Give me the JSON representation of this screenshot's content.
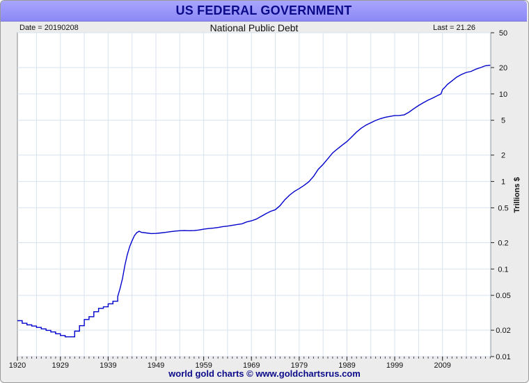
{
  "header": {
    "title": "US FEDERAL GOVERNMENT"
  },
  "footer": {
    "credit": "world gold charts © www.goldchartsrus.com"
  },
  "colors": {
    "line": "#0000cc",
    "title_bar": "#9a97fb",
    "title_text": "#0b0b8a",
    "grid": "#d8e2ef"
  },
  "chart_data": {
    "type": "line",
    "title": "National Public Debt",
    "date_label": "Date = 20190208",
    "last_label": "Last = 21.26",
    "xlabel": "",
    "ylabel": "Trillions $",
    "y_scale": "log",
    "xlim": [
      1920,
      2019.1
    ],
    "ylim": [
      0.01,
      50
    ],
    "x_ticks": [
      1920,
      1929,
      1939,
      1949,
      1959,
      1969,
      1979,
      1989,
      1999,
      2009
    ],
    "x_tick_labels": [
      "1920",
      "1929",
      "1939",
      "1949",
      "1959",
      "1969",
      "1979",
      "1989",
      "1999",
      "2009"
    ],
    "y_ticks": [
      0.01,
      0.02,
      0.05,
      0.1,
      0.2,
      0.5,
      1,
      2,
      5,
      10,
      20,
      50
    ],
    "y_tick_labels": [
      "0.01",
      "0.02",
      "0.05",
      "0.1",
      "0.2",
      "0.5",
      "1",
      "2",
      "5",
      "10",
      "20",
      "50"
    ],
    "grid": true,
    "series": [
      {
        "x": [
          1920,
          1921,
          1922,
          1923,
          1924,
          1925,
          1926,
          1927,
          1928,
          1929,
          1930,
          1931,
          1932,
          1933,
          1934,
          1935,
          1936,
          1937,
          1938,
          1939,
          1940,
          1941,
          1941.5,
          1942,
          1942.5,
          1943,
          1943.5,
          1944,
          1944.5,
          1945,
          1945.5,
          1946,
          1947,
          1948,
          1949,
          1950,
          1951,
          1952,
          1953,
          1954,
          1955,
          1956,
          1957,
          1958,
          1959,
          1960,
          1961,
          1962,
          1963,
          1964,
          1965,
          1966,
          1967,
          1968,
          1969,
          1970,
          1971,
          1972,
          1973,
          1974,
          1975,
          1976,
          1977,
          1978,
          1979,
          1980,
          1981,
          1982,
          1983,
          1984,
          1985,
          1986,
          1987,
          1988,
          1989,
          1990,
          1991,
          1992,
          1993,
          1994,
          1995,
          1996,
          1997,
          1998,
          1999,
          2000,
          2001,
          2002,
          2003,
          2004,
          2005,
          2006,
          2007,
          2008,
          2008.7,
          2009,
          2009.5,
          2010,
          2011,
          2012,
          2013,
          2014,
          2015,
          2016,
          2017,
          2018,
          2019
        ],
        "values": [
          0.0257,
          0.024,
          0.023,
          0.0223,
          0.0215,
          0.0207,
          0.0199,
          0.0191,
          0.0182,
          0.0174,
          0.0168,
          0.0168,
          0.0195,
          0.0225,
          0.0265,
          0.0285,
          0.0325,
          0.0355,
          0.037,
          0.04,
          0.0428,
          0.0485,
          0.06,
          0.078,
          0.11,
          0.145,
          0.18,
          0.21,
          0.24,
          0.26,
          0.27,
          0.262,
          0.258,
          0.254,
          0.255,
          0.258,
          0.262,
          0.267,
          0.271,
          0.274,
          0.275,
          0.274,
          0.275,
          0.279,
          0.285,
          0.29,
          0.293,
          0.298,
          0.305,
          0.309,
          0.315,
          0.322,
          0.328,
          0.345,
          0.355,
          0.371,
          0.398,
          0.427,
          0.456,
          0.475,
          0.53,
          0.62,
          0.7,
          0.77,
          0.83,
          0.9,
          0.99,
          1.14,
          1.38,
          1.57,
          1.82,
          2.12,
          2.35,
          2.6,
          2.86,
          3.23,
          3.66,
          4.06,
          4.41,
          4.69,
          4.97,
          5.22,
          5.41,
          5.53,
          5.66,
          5.67,
          5.77,
          6.2,
          6.78,
          7.38,
          7.93,
          8.51,
          9.0,
          9.6,
          10.0,
          11.2,
          11.9,
          12.8,
          14.1,
          15.6,
          16.7,
          17.6,
          18.1,
          19.2,
          20.0,
          21.0,
          21.26
        ],
        "step_before_x": 1941
      }
    ]
  }
}
